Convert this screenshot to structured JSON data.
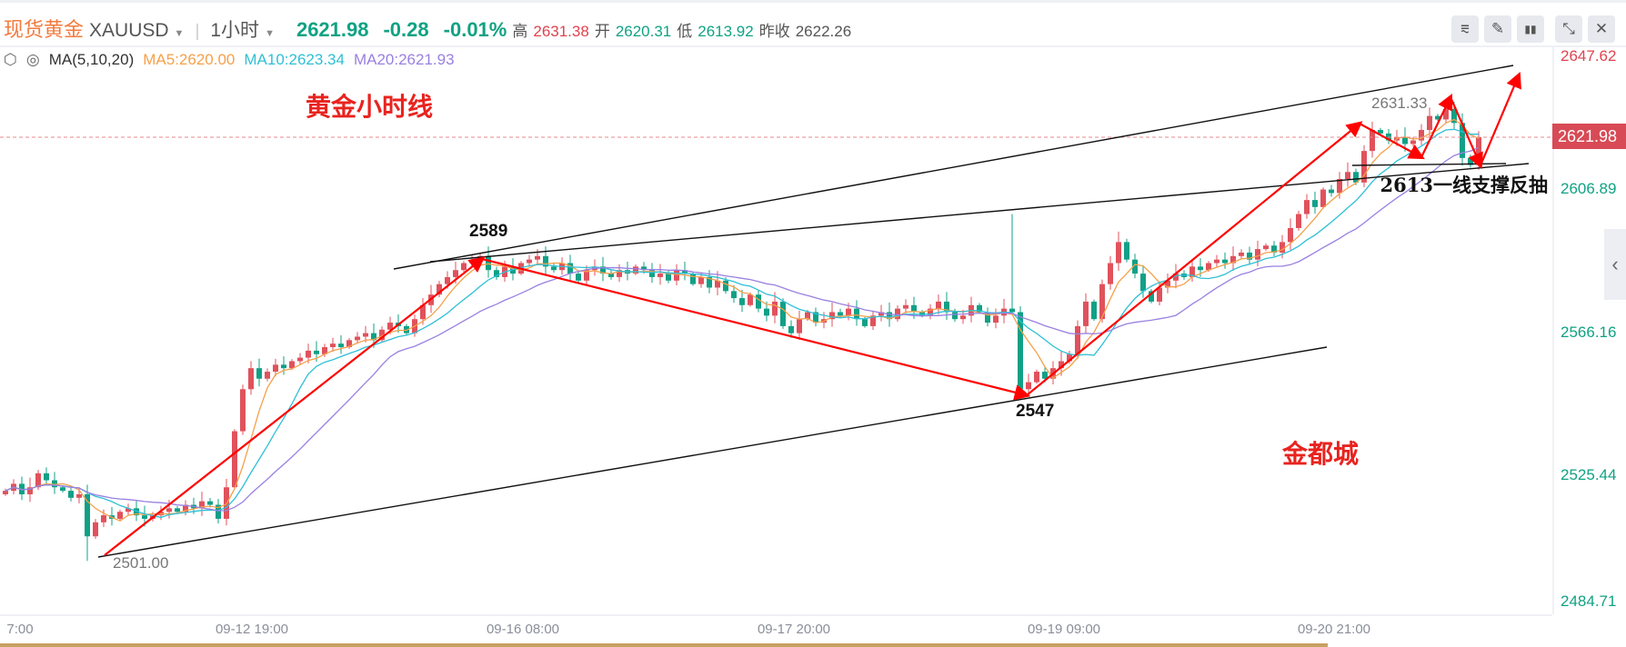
{
  "header": {
    "title": "现货黄金",
    "symbol": "XAUUSD",
    "interval": "1小时",
    "price": "2621.98",
    "change": "-0.28",
    "change_pct": "-0.01%",
    "high_label": "高",
    "high": "2631.38",
    "open_label": "开",
    "open": "2620.31",
    "low_label": "低",
    "low": "2613.92",
    "prev_label": "昨收",
    "prev": "2622.26"
  },
  "toolbar": [
    {
      "icon": "indicator-icon",
      "glyph": "⩳"
    },
    {
      "icon": "pencil-icon",
      "glyph": "✎"
    },
    {
      "icon": "candles-icon",
      "glyph": "▮▮"
    },
    {
      "icon": "compress-icon",
      "glyph": "⤡"
    },
    {
      "icon": "close-icon",
      "glyph": "✕"
    }
  ],
  "ma": {
    "label": "MA(5,10,20)",
    "ma5": "MA5:2620.00",
    "ma10": "MA10:2623.34",
    "ma20": "MA20:2621.93"
  },
  "colors": {
    "up": "#e0525c",
    "down": "#11a086",
    "ma5": "#f5a04a",
    "ma10": "#2fbfd6",
    "ma20": "#9a80e0",
    "annotation": "#ff0000"
  },
  "annotations": {
    "title": "黄金小时线",
    "watermark": "金都城",
    "p2589": "2589",
    "p2547": "2547",
    "support": "2613一线支撑反抽",
    "low_mark": "2501.00",
    "high_mark": "2631.33"
  },
  "chart_data": {
    "type": "candlestick",
    "yaxis_ticks": [
      "2647.62",
      "2606.89",
      "2566.16",
      "2525.44",
      "2484.71"
    ],
    "current_price": "2621.98",
    "xaxis_ticks": [
      "7:00",
      "09-12 19:00",
      "09-16 08:00",
      "09-17 20:00",
      "09-19 09:00",
      "09-20 21:00"
    ],
    "closes": [
      2521,
      2523,
      2520,
      2522,
      2526,
      2524,
      2522,
      2521,
      2519,
      2520,
      2508,
      2512,
      2514,
      2513,
      2515,
      2516,
      2514,
      2513,
      2514,
      2515,
      2516,
      2515,
      2517,
      2516,
      2518,
      2517,
      2513,
      2522,
      2538,
      2550,
      2556,
      2553,
      2555,
      2557,
      2556,
      2558,
      2559,
      2561,
      2560,
      2562,
      2563,
      2562,
      2564,
      2565,
      2566,
      2564,
      2567,
      2569,
      2568,
      2566,
      2570,
      2574,
      2577,
      2580,
      2582,
      2584,
      2586,
      2587,
      2588,
      2584,
      2582,
      2585,
      2583,
      2586,
      2587,
      2588,
      2585,
      2584,
      2586,
      2583,
      2581,
      2584,
      2585,
      2583,
      2582,
      2584,
      2583,
      2585,
      2584,
      2582,
      2583,
      2581,
      2584,
      2583,
      2580,
      2582,
      2579,
      2581,
      2578,
      2576,
      2574,
      2577,
      2573,
      2571,
      2575,
      2568,
      2566,
      2570,
      2572,
      2569,
      2570,
      2572,
      2571,
      2573,
      2570,
      2568,
      2571,
      2572,
      2570,
      2573,
      2574,
      2572,
      2571,
      2573,
      2575,
      2572,
      2570,
      2571,
      2574,
      2572,
      2569,
      2571,
      2573,
      2572,
      2550,
      2552,
      2555,
      2553,
      2556,
      2558,
      2560,
      2568,
      2575,
      2570,
      2580,
      2586,
      2592,
      2587,
      2583,
      2578,
      2575,
      2579,
      2581,
      2583,
      2582,
      2585,
      2584,
      2586,
      2587,
      2586,
      2588,
      2589,
      2587,
      2590,
      2591,
      2589,
      2592,
      2596,
      2600,
      2604,
      2602,
      2607,
      2606,
      2610,
      2612,
      2609,
      2618,
      2624,
      2623,
      2621,
      2622,
      2620,
      2621,
      2624,
      2628,
      2627,
      2630,
      2626,
      2616,
      2614,
      2621.98
    ],
    "extremes": [
      {
        "index": 10,
        "low": 2501.0
      },
      {
        "index": 58,
        "high": 2589
      },
      {
        "index": 123,
        "high": 2600
      },
      {
        "index": 124,
        "low": 2547
      },
      {
        "index": 136,
        "high": 2595
      },
      {
        "index": 176,
        "high": 2631.33
      }
    ],
    "moving_averages": [
      5,
      10,
      20
    ]
  }
}
